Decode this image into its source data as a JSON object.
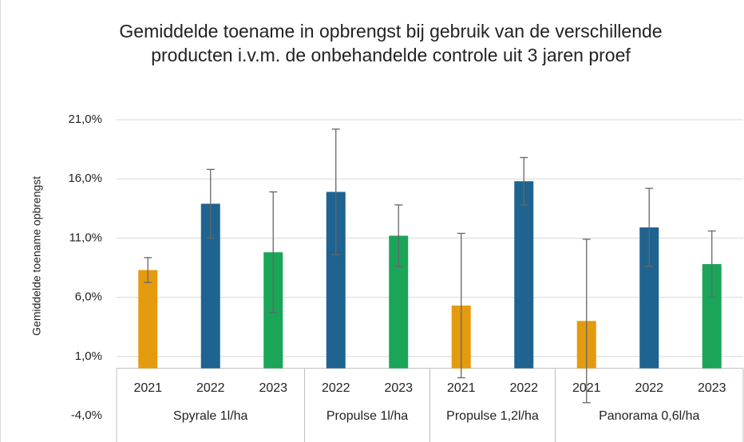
{
  "chart_data": {
    "type": "bar",
    "title": "Gemiddelde toename in opbrengst bij gebruik van de verschillende producten i.v.m. de onbehandelde controle uit 3 jaren proef",
    "y_label": "Gemiddelde toename opbrengst",
    "ylim": [
      -4,
      21
    ],
    "yticks": [
      {
        "value": -4,
        "label": "-4,0%"
      },
      {
        "value": 1,
        "label": "1,0%"
      },
      {
        "value": 6,
        "label": "6,0%"
      },
      {
        "value": 11,
        "label": "11,0%"
      },
      {
        "value": 16,
        "label": "16,0%"
      },
      {
        "value": 21,
        "label": "21,0%"
      }
    ],
    "grid": true,
    "year_colors": {
      "2021": "#e49b0f",
      "2022": "#1f6391",
      "2023": "#1aa558"
    },
    "groups": [
      {
        "name": "Spyrale 1l/ha",
        "categories": [
          "2021",
          "2022",
          "2023"
        ],
        "values": [
          8.3,
          13.9,
          9.8
        ],
        "errors": [
          1.05,
          2.9,
          5.1
        ]
      },
      {
        "name": "Propulse 1l/ha",
        "categories": [
          "2022",
          "2023"
        ],
        "values": [
          14.9,
          11.2
        ],
        "errors": [
          5.3,
          2.6
        ]
      },
      {
        "name": "Propulse 1,2l/ha",
        "categories": [
          "2021",
          "2022"
        ],
        "values": [
          5.3,
          15.8
        ],
        "errors": [
          6.1,
          2.0
        ]
      },
      {
        "name": "Panorama 0,6l/ha",
        "categories": [
          "2021",
          "2022",
          "2023"
        ],
        "values": [
          4.0,
          11.9,
          8.8
        ],
        "errors": [
          6.9,
          3.3,
          2.8
        ]
      }
    ]
  }
}
